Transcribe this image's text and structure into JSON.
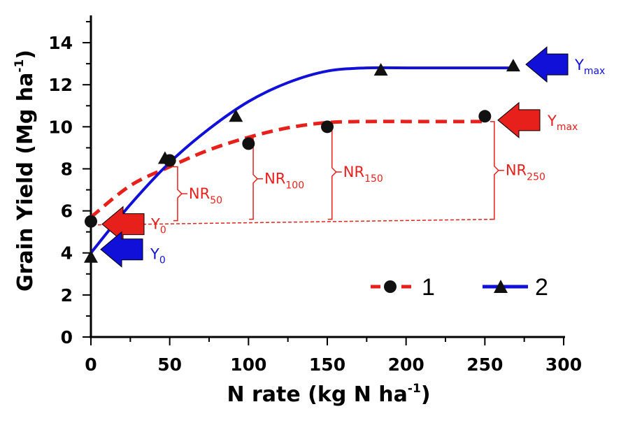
{
  "chart_data": {
    "type": "line",
    "xlabel": "N rate (kg N ha",
    "xlabel_sup": "-1",
    "xlabel_end": ")",
    "ylabel": "Grain Yield (Mg ha",
    "ylabel_sup": "-1",
    "ylabel_end": ")",
    "xlim": [
      0,
      300
    ],
    "ylim": [
      0,
      15
    ],
    "xticks": [
      0,
      50,
      100,
      150,
      200,
      250,
      300
    ],
    "yticks": [
      0,
      2,
      4,
      6,
      8,
      10,
      12,
      14
    ],
    "grid": false,
    "legend_position": "bottom-right",
    "series": [
      {
        "name": "1",
        "color": "#e8201c",
        "line_style": "dashed",
        "marker": "circle",
        "points_x": [
          0,
          50,
          100,
          150,
          250
        ],
        "points_y": [
          5.5,
          8.4,
          9.2,
          10.0,
          10.5
        ],
        "fit_x": [
          0,
          25,
          50,
          75,
          100,
          125,
          150,
          175,
          200,
          250
        ],
        "fit_y": [
          5.7,
          7.2,
          8.1,
          8.9,
          9.5,
          9.95,
          10.2,
          10.25,
          10.25,
          10.25
        ]
      },
      {
        "name": "2",
        "color": "#1010d8",
        "line_style": "solid",
        "marker": "triangle",
        "points_x": [
          0,
          47,
          92,
          184,
          268
        ],
        "points_y": [
          3.8,
          8.5,
          10.5,
          12.7,
          12.9
        ],
        "fit_x": [
          0,
          25,
          50,
          75,
          100,
          125,
          150,
          175,
          200,
          268
        ],
        "fit_y": [
          4.0,
          6.3,
          8.3,
          9.9,
          11.2,
          12.1,
          12.65,
          12.8,
          12.8,
          12.8
        ]
      }
    ],
    "annotations": {
      "y0_label": "Y",
      "y0_sub": "0",
      "ymax_label": "Y",
      "ymax_sub": "max",
      "nr": [
        {
          "label": "NR",
          "sub": "50",
          "x": 55,
          "y_top": 8.1
        },
        {
          "label": "NR",
          "sub": "100",
          "x": 103,
          "y_top": 9.45
        },
        {
          "label": "NR",
          "sub": "150",
          "x": 153,
          "y_top": 10.1
        },
        {
          "label": "NR",
          "sub": "250",
          "x": 256,
          "y_top": 10.25
        }
      ],
      "baseline_y": 5.6
    }
  }
}
